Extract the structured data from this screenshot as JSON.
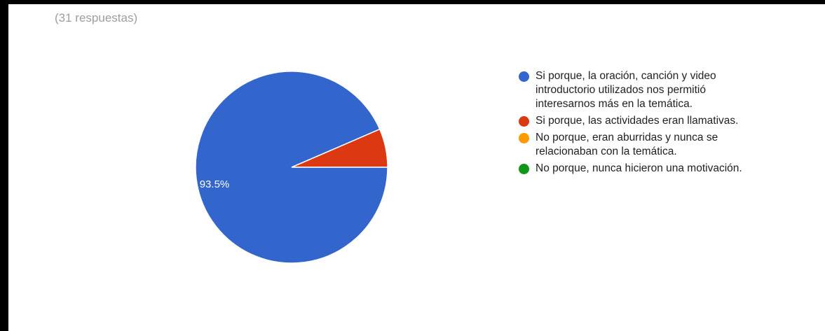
{
  "response_count": "(31 respuestas)",
  "chart_data": {
    "type": "pie",
    "slices": [
      {
        "label": "Si porque, la oración, canción y video introductorio utilizados nos permitió interesarnos más en la temática.",
        "value": 93.5,
        "display": "93.5%",
        "color": "#3366cc"
      },
      {
        "label": "Si porque, las actividades eran llamativas.",
        "value": 6.5,
        "display": "",
        "color": "#dc3912"
      },
      {
        "label": "No porque, eran aburridas y nunca se relacionaban con la temática.",
        "value": 0,
        "display": "",
        "color": "#ff9900"
      },
      {
        "label": "No porque, nunca hicieron una motivación.",
        "value": 0,
        "display": "",
        "color": "#109618"
      }
    ],
    "legend_position": "right"
  }
}
